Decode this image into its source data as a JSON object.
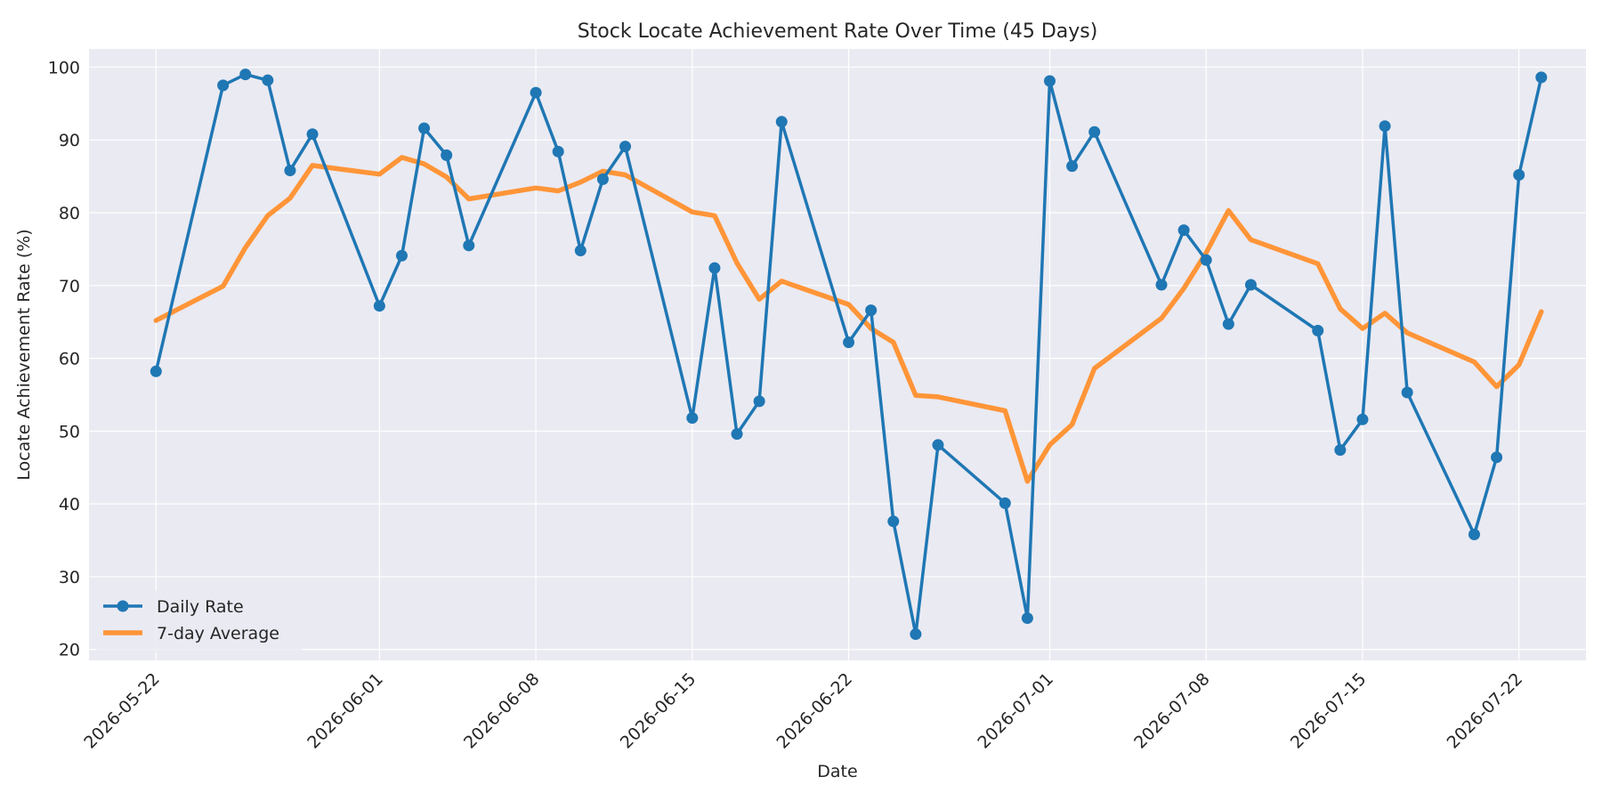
{
  "chart_data": {
    "type": "line",
    "title": "Stock Locate Achievement Rate Over Time (45 Days)",
    "xlabel": "Date",
    "ylabel": "Locate Achievement Rate (%)",
    "xlim": [
      "2026-05-19",
      "2026-07-25"
    ],
    "ylim": [
      18.5,
      102.5
    ],
    "grid": true,
    "legend": "lower-left",
    "x_ticks": [
      "2026-05-22",
      "2026-06-01",
      "2026-06-08",
      "2026-06-15",
      "2026-06-22",
      "2026-07-01",
      "2026-07-08",
      "2026-07-15",
      "2026-07-22"
    ],
    "y_ticks": [
      20,
      30,
      40,
      50,
      60,
      70,
      80,
      90,
      100
    ],
    "x": [
      "2026-05-22",
      "2026-05-25",
      "2026-05-26",
      "2026-05-27",
      "2026-05-28",
      "2026-05-29",
      "2026-06-01",
      "2026-06-02",
      "2026-06-03",
      "2026-06-04",
      "2026-06-05",
      "2026-06-08",
      "2026-06-09",
      "2026-06-10",
      "2026-06-11",
      "2026-06-12",
      "2026-06-15",
      "2026-06-16",
      "2026-06-17",
      "2026-06-18",
      "2026-06-19",
      "2026-06-22",
      "2026-06-23",
      "2026-06-24",
      "2026-06-25",
      "2026-06-26",
      "2026-06-29",
      "2026-06-30",
      "2026-07-01",
      "2026-07-02",
      "2026-07-03",
      "2026-07-06",
      "2026-07-07",
      "2026-07-08",
      "2026-07-09",
      "2026-07-10",
      "2026-07-13",
      "2026-07-14",
      "2026-07-15",
      "2026-07-16",
      "2026-07-17",
      "2026-07-20",
      "2026-07-21",
      "2026-07-22",
      "2026-07-23"
    ],
    "series": [
      {
        "name": "Daily Rate",
        "color": "#1f77b4",
        "marker": "circle",
        "values": [
          58.2,
          97.5,
          99.0,
          98.2,
          85.8,
          90.8,
          67.2,
          74.1,
          91.6,
          87.9,
          75.5,
          96.5,
          88.4,
          74.8,
          84.6,
          89.1,
          51.8,
          72.4,
          49.6,
          54.1,
          92.5,
          62.2,
          66.6,
          37.6,
          22.1,
          48.1,
          40.1,
          24.3,
          98.1,
          86.4,
          91.1,
          70.1,
          77.6,
          73.5,
          64.7,
          70.1,
          63.8,
          47.4,
          51.6,
          91.9,
          55.3,
          35.8,
          46.4,
          85.2,
          98.6
        ]
      },
      {
        "name": "7-day Average",
        "color": "#ff9538",
        "marker": "none",
        "values": [
          65.2,
          69.9,
          75.2,
          79.6,
          82.0,
          86.5,
          85.3,
          87.6,
          86.7,
          84.9,
          81.9,
          83.4,
          83.0,
          84.2,
          85.7,
          85.2,
          80.1,
          79.6,
          73.1,
          68.1,
          70.6,
          67.4,
          64.1,
          62.2,
          54.9,
          54.7,
          52.8,
          43.1,
          48.1,
          50.9,
          58.6,
          65.5,
          69.6,
          74.5,
          80.3,
          76.3,
          73.0,
          66.8,
          64.1,
          66.2,
          63.5,
          59.5,
          56.1,
          59.1,
          66.4
        ]
      }
    ]
  }
}
